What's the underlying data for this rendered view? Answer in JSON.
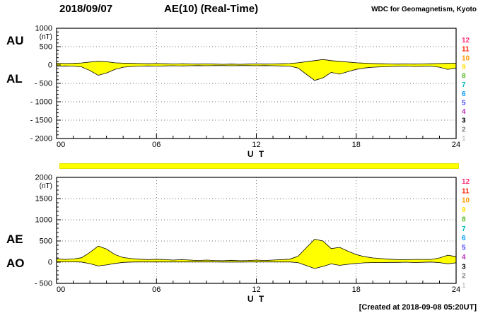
{
  "header": {
    "date": "2018/09/07",
    "title": "AE(10) (Real-Time)",
    "source": "WDC for Geomagnetism, Kyoto"
  },
  "footer": {
    "created": "[Created at 2018-09-08 05:20UT]"
  },
  "station_legend": {
    "counts": [
      12,
      11,
      10,
      9,
      8,
      7,
      6,
      5,
      4,
      3,
      2,
      1
    ],
    "colors": [
      "#ff2d78",
      "#ff2200",
      "#ff9900",
      "#ffdd00",
      "#55bb22",
      "#00bbbb",
      "#0099ff",
      "#4444ff",
      "#bb33bb",
      "#000000",
      "#808080",
      "#c8c8c8"
    ]
  },
  "availability_bar": {
    "color": "#ffff00"
  },
  "chart_data": [
    {
      "type": "area",
      "panel": "AU / AL indices",
      "left_labels": [
        "AU",
        "AL"
      ],
      "unit": "(nT)",
      "xlabel": "U T",
      "xlim": [
        0,
        24
      ],
      "x_ticks": [
        0,
        6,
        12,
        18,
        24
      ],
      "x_tick_labels": [
        "00",
        "06",
        "12",
        "18",
        "24"
      ],
      "ylim": [
        -2000,
        1000
      ],
      "y_ticks": [
        1000,
        500,
        0,
        -500,
        -1000,
        -1500,
        -2000
      ],
      "y_tick_labels": [
        "1000",
        "500",
        "0",
        "- 500",
        "- 1000",
        "- 1500",
        "- 2000"
      ],
      "grid": "dotted",
      "fill_color": "#ffff00",
      "x_step_hours": 0.5,
      "series": [
        {
          "name": "AU",
          "values": [
            50,
            40,
            45,
            55,
            80,
            100,
            90,
            60,
            50,
            45,
            40,
            35,
            40,
            35,
            30,
            35,
            30,
            25,
            30,
            25,
            20,
            25,
            20,
            25,
            30,
            25,
            30,
            35,
            40,
            60,
            90,
            120,
            150,
            120,
            100,
            80,
            60,
            50,
            40,
            35,
            30,
            25,
            30,
            25,
            30,
            35,
            40,
            45,
            50
          ]
        },
        {
          "name": "AL",
          "values": [
            -30,
            -25,
            -30,
            -50,
            -150,
            -280,
            -220,
            -120,
            -60,
            -40,
            -30,
            -25,
            -30,
            -25,
            -20,
            -25,
            -20,
            -15,
            -20,
            -15,
            -15,
            -20,
            -15,
            -15,
            -20,
            -15,
            -20,
            -25,
            -30,
            -80,
            -250,
            -420,
            -350,
            -200,
            -250,
            -180,
            -120,
            -80,
            -60,
            -50,
            -40,
            -35,
            -30,
            -40,
            -35,
            -30,
            -60,
            -120,
            -80
          ]
        }
      ]
    },
    {
      "type": "area",
      "panel": "AE / AO indices",
      "left_labels": [
        "AE",
        "AO"
      ],
      "unit": "(nT)",
      "xlabel": "U T",
      "xlim": [
        0,
        24
      ],
      "x_ticks": [
        0,
        6,
        12,
        18,
        24
      ],
      "x_tick_labels": [
        "00",
        "06",
        "12",
        "18",
        "24"
      ],
      "ylim": [
        -500,
        2000
      ],
      "y_ticks": [
        2000,
        1500,
        1000,
        500,
        0,
        -500
      ],
      "y_tick_labels": [
        "2000",
        "1500",
        "1000",
        "500",
        "0",
        "- 500"
      ],
      "grid": "dotted",
      "fill_color": "#ffff00",
      "x_step_hours": 0.5,
      "series": [
        {
          "name": "AE",
          "values": [
            80,
            65,
            75,
            105,
            230,
            380,
            310,
            180,
            110,
            85,
            70,
            60,
            70,
            60,
            50,
            60,
            50,
            40,
            50,
            40,
            35,
            45,
            35,
            40,
            50,
            40,
            50,
            60,
            70,
            140,
            340,
            540,
            500,
            320,
            350,
            260,
            180,
            130,
            100,
            85,
            70,
            60,
            60,
            65,
            65,
            65,
            100,
            165,
            130
          ]
        },
        {
          "name": "AO",
          "values": [
            10,
            8,
            8,
            3,
            -35,
            -90,
            -65,
            -30,
            -5,
            3,
            5,
            5,
            5,
            5,
            5,
            5,
            5,
            5,
            5,
            5,
            3,
            3,
            3,
            5,
            5,
            5,
            5,
            5,
            5,
            -10,
            -80,
            -150,
            -100,
            -40,
            -75,
            -50,
            -30,
            -15,
            -10,
            -8,
            -5,
            -5,
            0,
            -8,
            -3,
            3,
            -10,
            -38,
            -15
          ]
        }
      ]
    }
  ]
}
